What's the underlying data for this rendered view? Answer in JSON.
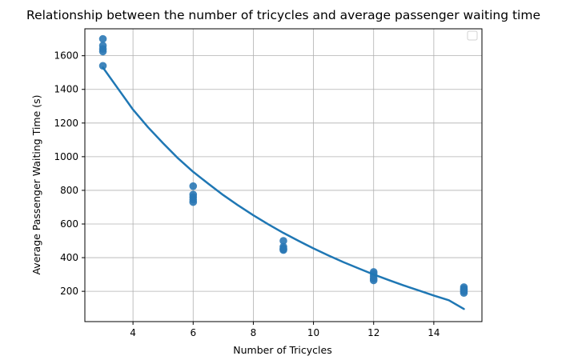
{
  "chart_data": {
    "type": "scatter",
    "title": "Relationship between the number of tricycles and average passenger waiting time",
    "xlabel": "Number of Tricycles",
    "ylabel": "Average Passenger Waiting Time (s)",
    "xlim": [
      2.4,
      15.6
    ],
    "ylim": [
      20,
      1760
    ],
    "xticks": [
      4,
      6,
      8,
      10,
      12,
      14
    ],
    "yticks": [
      200,
      400,
      600,
      800,
      1000,
      1200,
      1400,
      1600
    ],
    "grid": true,
    "legend": {
      "placement": "top-right",
      "entries": []
    },
    "series": [
      {
        "type": "scatter",
        "color": "#2a78b5",
        "points": [
          {
            "x": 3,
            "y": 1700
          },
          {
            "x": 3,
            "y": 1660
          },
          {
            "x": 3,
            "y": 1640
          },
          {
            "x": 3,
            "y": 1625
          },
          {
            "x": 3,
            "y": 1540
          },
          {
            "x": 6,
            "y": 825
          },
          {
            "x": 6,
            "y": 775
          },
          {
            "x": 6,
            "y": 760
          },
          {
            "x": 6,
            "y": 745
          },
          {
            "x": 6,
            "y": 730
          },
          {
            "x": 9,
            "y": 500
          },
          {
            "x": 9,
            "y": 465
          },
          {
            "x": 9,
            "y": 455
          },
          {
            "x": 9,
            "y": 450
          },
          {
            "x": 9,
            "y": 445
          },
          {
            "x": 12,
            "y": 315
          },
          {
            "x": 12,
            "y": 305
          },
          {
            "x": 12,
            "y": 290
          },
          {
            "x": 12,
            "y": 275
          },
          {
            "x": 12,
            "y": 265
          },
          {
            "x": 15,
            "y": 225
          },
          {
            "x": 15,
            "y": 215
          },
          {
            "x": 15,
            "y": 210
          },
          {
            "x": 15,
            "y": 200
          },
          {
            "x": 15,
            "y": 190
          }
        ]
      },
      {
        "type": "line",
        "color": "#1f77b4",
        "points": [
          {
            "x": 3,
            "y": 1530
          },
          {
            "x": 3.5,
            "y": 1405
          },
          {
            "x": 4,
            "y": 1280
          },
          {
            "x": 4.5,
            "y": 1175
          },
          {
            "x": 5,
            "y": 1080
          },
          {
            "x": 5.5,
            "y": 990
          },
          {
            "x": 6,
            "y": 910
          },
          {
            "x": 6.5,
            "y": 840
          },
          {
            "x": 7,
            "y": 772
          },
          {
            "x": 7.5,
            "y": 710
          },
          {
            "x": 8,
            "y": 652
          },
          {
            "x": 8.5,
            "y": 598
          },
          {
            "x": 9,
            "y": 547
          },
          {
            "x": 9.5,
            "y": 500
          },
          {
            "x": 10,
            "y": 455
          },
          {
            "x": 10.5,
            "y": 413
          },
          {
            "x": 11,
            "y": 373
          },
          {
            "x": 11.5,
            "y": 336
          },
          {
            "x": 12,
            "y": 300
          },
          {
            "x": 12.5,
            "y": 267
          },
          {
            "x": 13,
            "y": 235
          },
          {
            "x": 13.5,
            "y": 205
          },
          {
            "x": 14,
            "y": 175
          },
          {
            "x": 14.5,
            "y": 147
          },
          {
            "x": 15,
            "y": 95
          }
        ]
      }
    ]
  }
}
